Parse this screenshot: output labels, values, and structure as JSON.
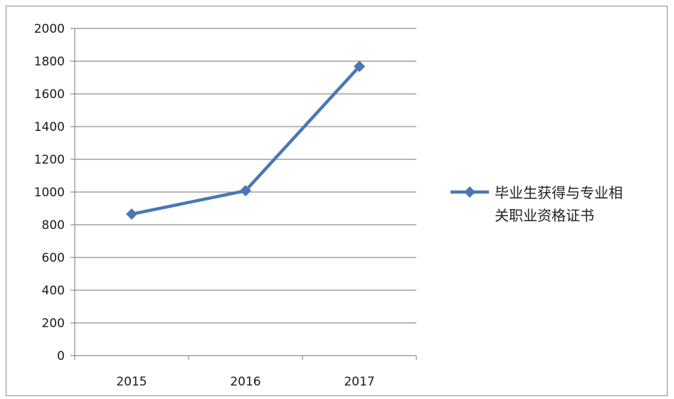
{
  "chart_data": {
    "type": "line",
    "title": "",
    "xlabel": "",
    "ylabel": "",
    "categories": [
      "2015",
      "2016",
      "2017"
    ],
    "series": [
      {
        "name": "毕业生获得与专业相关职业资格证书",
        "values": [
          865,
          1008,
          1768
        ],
        "color": "#4a77b4",
        "marker": "diamond"
      }
    ],
    "ylim": [
      0,
      2000
    ],
    "yticks": [
      "0",
      "200",
      "400",
      "600",
      "800",
      "1000",
      "1200",
      "1400",
      "1600",
      "1800",
      "2000"
    ],
    "grid": true,
    "legend": {
      "position": "right",
      "lines": [
        "毕业生获得与专业相",
        "关职业资格证书"
      ]
    },
    "colors": {
      "series": "#4a77b4",
      "grid": "#8c8c8c",
      "axis": "#8c8c8c"
    }
  }
}
